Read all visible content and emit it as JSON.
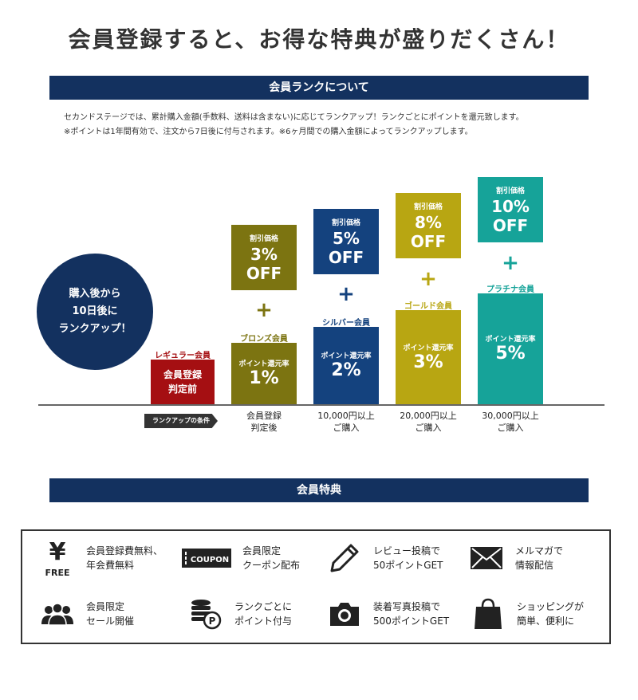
{
  "header": {
    "title": "会員登録すると、お得な特典が盛りだくさん！"
  },
  "rank_section": {
    "title": "会員ランクについて",
    "desc1": "セカンドステージでは、累計購入金額(手数料、送料は含まない)に応じてランクアップ！ランクごとにポイントを還元致します。",
    "desc2": "※ポイントは1年間有効で、注文から7日後に付与されます。※6ヶ月間での購入金額によってランクアップします。"
  },
  "circle": {
    "line1": "購入後から",
    "line2": "10日後に",
    "line3": "ランクアップ！"
  },
  "condition_tag": "ランクアップの条件",
  "ranks": [
    {
      "name": "レギュラー会員",
      "box_line1": "会員登録",
      "box_line2": "判定前",
      "color": "#a50f12"
    },
    {
      "name": "ブロンズ会員",
      "point_label": "ポイント還元率",
      "point_value": "1%",
      "discount_label": "割引価格",
      "discount_value": "3%",
      "discount_suffix": "OFF",
      "cond_line1": "会員登録",
      "cond_line2": "判定後",
      "color": "#7c7411"
    },
    {
      "name": "シルバー会員",
      "point_label": "ポイント還元率",
      "point_value": "2%",
      "discount_label": "割引価格",
      "discount_value": "5%",
      "discount_suffix": "OFF",
      "cond_line1": "10,000円以上",
      "cond_line2": "ご購入",
      "color": "#14427e"
    },
    {
      "name": "ゴールド会員",
      "point_label": "ポイント還元率",
      "point_value": "3%",
      "discount_label": "割引価格",
      "discount_value": "8%",
      "discount_suffix": "OFF",
      "cond_line1": "20,000円以上",
      "cond_line2": "ご購入",
      "color": "#b8a612"
    },
    {
      "name": "プラチナ会員",
      "point_label": "ポイント還元率",
      "point_value": "5%",
      "discount_label": "割引価格",
      "discount_value": "10%",
      "discount_suffix": "OFF",
      "cond_line1": "30,000円以上",
      "cond_line2": "ご購入",
      "color": "#16a399"
    }
  ],
  "plus": "+",
  "benefit_section": {
    "title": "会員特典"
  },
  "benefits": [
    {
      "icon": "yen-free-icon",
      "icon_text": "FREE",
      "line1": "会員登録費無料、",
      "line2": "年会費無料"
    },
    {
      "icon": "coupon-icon",
      "icon_text": "COUPON",
      "line1": "会員限定",
      "line2": "クーポン配布"
    },
    {
      "icon": "pencil-icon",
      "line1": "レビュー投稿で",
      "line2": "50ポイントGET"
    },
    {
      "icon": "mail-icon",
      "line1": "メルマガで",
      "line2": "情報配信"
    },
    {
      "icon": "group-icon",
      "line1": "会員限定",
      "line2": "セール開催"
    },
    {
      "icon": "coins-icon",
      "icon_text": "P",
      "line1": "ランクごとに",
      "line2": "ポイント付与"
    },
    {
      "icon": "camera-icon",
      "line1": "装着写真投稿で",
      "line2": "500ポイントGET"
    },
    {
      "icon": "shopping-bag-icon",
      "line1": "ショッピングが",
      "line2": "簡単、便利に"
    }
  ]
}
